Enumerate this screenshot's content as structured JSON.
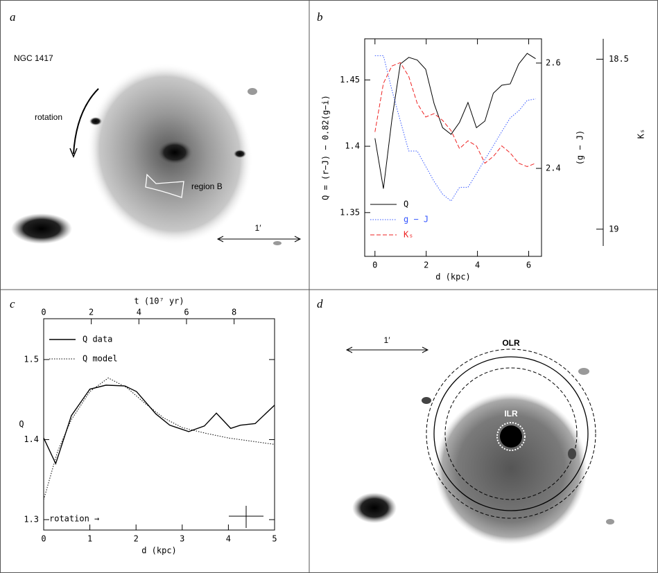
{
  "figure": {
    "panels": {
      "a": {
        "label": "a",
        "object": "NGC 1417",
        "rotation": "rotation",
        "region": "region B",
        "scale": "1′"
      },
      "b": {
        "label": "b"
      },
      "c": {
        "label": "c"
      },
      "d": {
        "label": "d",
        "scale": "1′",
        "outer": "OLR",
        "inner": "ILR"
      }
    }
  },
  "chart_data": [
    {
      "type": "line",
      "xlabel": "d (kpc)",
      "ylabel": "Q = (r−J) − 0.82(g−i)",
      "y2label": "(g − J)",
      "y3label": "Kₛ",
      "x": [
        0,
        0.33,
        0.66,
        0.99,
        1.32,
        1.65,
        1.98,
        2.31,
        2.64,
        2.97,
        3.3,
        3.63,
        3.96,
        4.29,
        4.62,
        4.95,
        5.28,
        5.61,
        5.94,
        6.27
      ],
      "xlim": [
        -0.4,
        6.5
      ],
      "xticks": [
        0,
        2,
        4,
        6
      ],
      "ylim": [
        1.317,
        1.481
      ],
      "yticks": [
        1.35,
        1.4,
        1.45
      ],
      "y2lim": [
        2.233,
        2.646
      ],
      "y2ticks": [
        2.4,
        2.6
      ],
      "y3lim": [
        19.08,
        18.44
      ],
      "y3ticks": [
        18.5,
        19
      ],
      "legend": "lower left",
      "legend_text_colored": true,
      "series": [
        {
          "name": "Q",
          "color": "#000000",
          "dash": "solid",
          "values": [
            1.406,
            1.368,
            1.42,
            1.462,
            1.467,
            1.465,
            1.458,
            1.432,
            1.414,
            1.409,
            1.418,
            1.433,
            1.414,
            1.419,
            1.44,
            1.446,
            1.447,
            1.462,
            1.47,
            1.466
          ]
        },
        {
          "name": "g − J",
          "color": "#3355ff",
          "dash": "dotted",
          "axis": "y2",
          "values": [
            2.614,
            2.614,
            2.549,
            2.49,
            2.433,
            2.433,
            2.404,
            2.375,
            2.351,
            2.338,
            2.364,
            2.364,
            2.39,
            2.417,
            2.443,
            2.47,
            2.496,
            2.509,
            2.529,
            2.532
          ]
        },
        {
          "name": "Kₛ",
          "color": "#ee2222",
          "dash": "dashed",
          "axis": "y3",
          "values": [
            18.714,
            18.571,
            18.52,
            18.51,
            18.551,
            18.63,
            18.67,
            18.66,
            18.68,
            18.71,
            18.763,
            18.74,
            18.755,
            18.806,
            18.786,
            18.755,
            18.776,
            18.806,
            18.816,
            18.806
          ]
        }
      ]
    },
    {
      "type": "line",
      "xlabel": "d (kpc)",
      "ylabel": "Q",
      "x2label": "t (10⁷ yr)",
      "annotation": "rotation →",
      "xlim": [
        0,
        5
      ],
      "xticks": [
        0,
        1,
        2,
        3,
        4,
        5
      ],
      "x2lim": [
        0,
        9.7
      ],
      "x2ticks": [
        0,
        2,
        4,
        6,
        8
      ],
      "ylim": [
        1.287,
        1.551
      ],
      "yticks": [
        1.3,
        1.4,
        1.5
      ],
      "legend": "upper left",
      "legend_text_colored": false,
      "series": [
        {
          "name": "Q data",
          "color": "#000000",
          "dash": "solid",
          "width": 1.4,
          "x": [
            0,
            0.26,
            0.6,
            1.0,
            1.35,
            1.76,
            2.01,
            2.43,
            2.73,
            3.14,
            3.48,
            3.74,
            4.05,
            4.26,
            4.58,
            5.0
          ],
          "values": [
            1.402,
            1.37,
            1.43,
            1.463,
            1.468,
            1.467,
            1.46,
            1.432,
            1.418,
            1.41,
            1.417,
            1.433,
            1.414,
            1.418,
            1.42,
            1.443
          ]
        },
        {
          "name": "Q model",
          "color": "#000000",
          "dash": "dotted",
          "width": 1,
          "x": [
            0,
            0.3,
            0.6,
            1.0,
            1.4,
            1.8,
            2.2,
            2.6,
            3.0,
            3.5,
            4.0,
            4.5,
            5.0
          ],
          "values": [
            1.325,
            1.385,
            1.425,
            1.46,
            1.477,
            1.465,
            1.445,
            1.427,
            1.415,
            1.408,
            1.402,
            1.398,
            1.394
          ]
        }
      ]
    }
  ]
}
